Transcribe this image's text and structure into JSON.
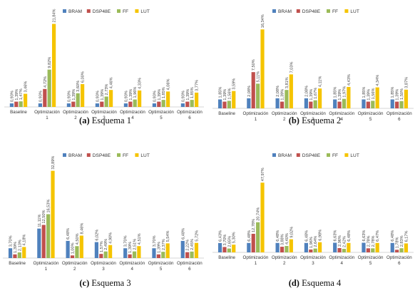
{
  "legend": [
    "BRAM",
    "DSP48E",
    "FF",
    "LUT"
  ],
  "colors": [
    "#4f81bd",
    "#c0504d",
    "#9bbb59",
    "#f5c400"
  ],
  "chart_data": [
    {
      "type": "bar",
      "caption_letter": "(a)",
      "caption_text": "Esquema 1",
      "categories": [
        "Baseline",
        "Optimización|1",
        "Optimización|2",
        "Optimización|3",
        "Optimización|4",
        "Optimización|5",
        "Optimización|6"
      ],
      "labels": [
        [
          "0,93%",
          "1,39%",
          "1,47%",
          "3,46%"
        ],
        [
          "0,93%",
          "4,72%",
          "9,82%",
          "21,84%"
        ],
        [
          "0,93%",
          "1,39%",
          "3,60%",
          "6,00%"
        ],
        [
          "0,93%",
          "1,39%",
          "2,73%",
          "4,46%"
        ],
        [
          "0,93%",
          "1,39%",
          "1,96%",
          "4,33%"
        ],
        [
          "0,93%",
          "1,39%",
          "1,85%",
          "4,06%"
        ],
        [
          "0,93%",
          "1,39%",
          "1,85%",
          "3,77%"
        ]
      ],
      "series": [
        {
          "name": "BRAM",
          "values": [
            0.93,
            0.93,
            0.93,
            0.93,
            0.93,
            0.93,
            0.93
          ]
        },
        {
          "name": "DSP48E",
          "values": [
            1.39,
            4.72,
            1.39,
            1.39,
            1.39,
            1.39,
            1.39
          ]
        },
        {
          "name": "FF",
          "values": [
            1.47,
            9.82,
            3.6,
            2.73,
            1.96,
            1.85,
            1.85
          ]
        },
        {
          "name": "LUT",
          "values": [
            3.46,
            21.84,
            6.0,
            4.46,
            4.33,
            4.06,
            3.77
          ]
        }
      ],
      "ylim": [
        0,
        24
      ]
    },
    {
      "type": "bar",
      "caption_letter": "(b)",
      "caption_text": "Esquema 2",
      "categories": [
        "Baseline",
        "Optimización|1",
        "Optimización|2",
        "Optimización|3",
        "Optimización|4",
        "Optimización|5",
        "Optimización|6"
      ],
      "labels": [
        [
          "1,85%",
          "1,39%",
          "1,56%",
          "3,59%"
        ],
        [
          "2,08%",
          "7,50%",
          "5,11%",
          "16,34%"
        ],
        [
          "2,08%",
          "1,39%",
          "3,81%",
          "7,03%"
        ],
        [
          "2,08%",
          "1,39%",
          "1,67%",
          "4,11%"
        ],
        [
          "1,85%",
          "1,39%",
          "1,97%",
          "4,43%"
        ],
        [
          "1,85%",
          "1,39%",
          "1,56%",
          "4,34%"
        ],
        [
          "1,85%",
          "1,39%",
          "1,50%",
          "3,87%"
        ]
      ],
      "series": [
        {
          "name": "BRAM",
          "values": [
            1.85,
            2.08,
            2.08,
            2.08,
            1.85,
            1.85,
            1.85
          ]
        },
        {
          "name": "DSP48E",
          "values": [
            1.39,
            7.5,
            1.39,
            1.39,
            1.39,
            1.39,
            1.39
          ]
        },
        {
          "name": "FF",
          "values": [
            1.56,
            5.11,
            3.81,
            1.67,
            1.97,
            1.56,
            1.5
          ]
        },
        {
          "name": "LUT",
          "values": [
            3.59,
            16.34,
            7.03,
            4.11,
            4.43,
            4.34,
            3.87
          ]
        }
      ],
      "ylim": [
        0,
        18
      ]
    },
    {
      "type": "bar",
      "caption_letter": "(c)",
      "caption_text": "Esquema 3",
      "categories": [
        "Baseline",
        "Optimización|1",
        "Optimización|2",
        "Optimización|3",
        "Optimización|4",
        "Optimización|5",
        "Optimización|6"
      ],
      "labels": [
        [
          "3,70%",
          "1,39%",
          "2,13%",
          "4,18%"
        ],
        [
          "11,11%",
          "12,50%",
          "16,53%",
          "32,89%"
        ],
        [
          "6,48%",
          "1,00%",
          "4,50%",
          "8,46%"
        ],
        [
          "6,02%",
          "1,57%",
          "2,49%",
          "4,90%"
        ],
        [
          "3,70%",
          "1,39%",
          "2,51%",
          "4,51%"
        ],
        [
          "3,70%",
          "1,39%",
          "2,37%",
          "5,54%"
        ],
        [
          "6,48%",
          "2,22%",
          "2,45%",
          "5,72%"
        ]
      ],
      "series": [
        {
          "name": "BRAM",
          "values": [
            3.7,
            11.11,
            6.48,
            6.02,
            3.7,
            3.7,
            6.48
          ]
        },
        {
          "name": "DSP48E",
          "values": [
            1.39,
            12.5,
            1.0,
            1.57,
            1.39,
            1.39,
            2.22
          ]
        },
        {
          "name": "FF",
          "values": [
            2.13,
            16.53,
            4.5,
            2.49,
            2.51,
            2.37,
            2.45
          ]
        },
        {
          "name": "LUT",
          "values": [
            4.18,
            32.89,
            8.46,
            4.9,
            4.51,
            5.54,
            5.72
          ]
        }
      ],
      "ylim": [
        0,
        36
      ]
    },
    {
      "type": "bar",
      "caption_letter": "(d)",
      "caption_text": "Esquema 4",
      "categories": [
        "Baseline",
        "Optimización|1",
        "Optimización|2",
        "Optimización|3",
        "Optimización|4",
        "Optimización|5",
        "Optimización|6"
      ],
      "labels": [
        [
          "6,43%",
          "3,70%",
          "2,65%",
          "5,30%"
        ],
        [
          "6,48%",
          "12,78%",
          "20,74%",
          "47,97%"
        ],
        [
          "6,48%",
          "3,88%",
          "4,40%",
          "9,02%"
        ],
        [
          "6,48%",
          "1,96%",
          "2,64%",
          "6,98%"
        ],
        [
          "6,63%",
          "2,96%",
          "2,42%",
          "6,48%"
        ],
        [
          "6,63%",
          "2,78%",
          "2,78%",
          "6,47%"
        ],
        [
          "6,48%",
          "1,78%",
          "2,83%",
          "6,17%"
        ]
      ],
      "series": [
        {
          "name": "BRAM",
          "values": [
            6.43,
            6.48,
            6.48,
            6.48,
            6.63,
            6.63,
            6.48
          ]
        },
        {
          "name": "DSP48E",
          "values": [
            3.7,
            12.78,
            3.88,
            1.96,
            2.96,
            2.78,
            1.78
          ]
        },
        {
          "name": "FF",
          "values": [
            2.65,
            20.74,
            4.4,
            2.64,
            2.42,
            2.78,
            2.83
          ]
        },
        {
          "name": "LUT",
          "values": [
            5.3,
            47.97,
            9.02,
            6.98,
            6.48,
            6.47,
            6.17
          ]
        }
      ],
      "ylim": [
        0,
        52
      ]
    }
  ]
}
